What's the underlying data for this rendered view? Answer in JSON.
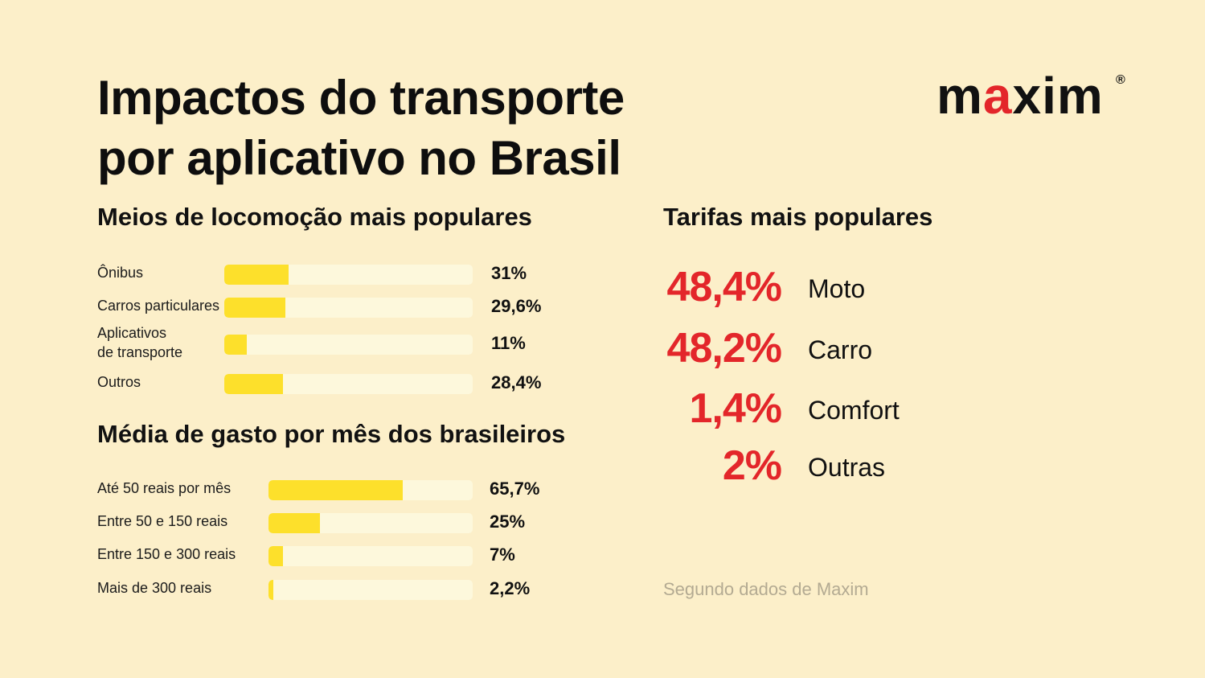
{
  "title_lines": [
    "Impactos do transporte",
    "por aplicativo no Brasil"
  ],
  "logo": {
    "text": "maxim",
    "mark": "®",
    "accent_color": "#e3262a"
  },
  "colors": {
    "background": "#fcefc9",
    "bar_fill": "#fde02b",
    "bar_track": "#fdf8dc",
    "accent": "#e3262a",
    "source_text": "#b3aa92"
  },
  "source": "Segundo dados de Maxim",
  "chart_data": [
    {
      "type": "bar",
      "orientation": "horizontal",
      "title": "Meios de locomoção mais populares",
      "categories": [
        "Ônibus",
        "Carros particulares",
        "Aplicativos de transporte",
        "Outros"
      ],
      "category_lines": [
        [
          "Ônibus"
        ],
        [
          "Carros particulares"
        ],
        [
          "Aplicativos",
          "de transporte"
        ],
        [
          "Outros"
        ]
      ],
      "values": [
        31,
        29.6,
        11,
        28.4
      ],
      "value_labels": [
        "31%",
        "29,6%",
        "11%",
        "28,4%"
      ],
      "xlim": [
        0,
        120
      ],
      "unit": "%"
    },
    {
      "type": "bar",
      "orientation": "horizontal",
      "title": "Média de gasto por mês dos brasileiros",
      "categories": [
        "Até 50 reais por mês",
        "Entre 50 e 150 reais",
        "Entre 150 e 300 reais",
        "Mais de 300 reais"
      ],
      "values": [
        65.7,
        25,
        7,
        2.2
      ],
      "value_labels": [
        "65,7%",
        "25%",
        "7%",
        "2,2%"
      ],
      "xlim": [
        0,
        100
      ],
      "unit": "%"
    },
    {
      "type": "table",
      "title": "Tarifas mais populares",
      "categories": [
        "Moto",
        "Carro",
        "Comfort",
        "Outras"
      ],
      "values": [
        48.4,
        48.2,
        1.4,
        2
      ],
      "value_labels": [
        "48,4%",
        "48,2%",
        "1,4%",
        "2%"
      ],
      "unit": "%"
    }
  ]
}
